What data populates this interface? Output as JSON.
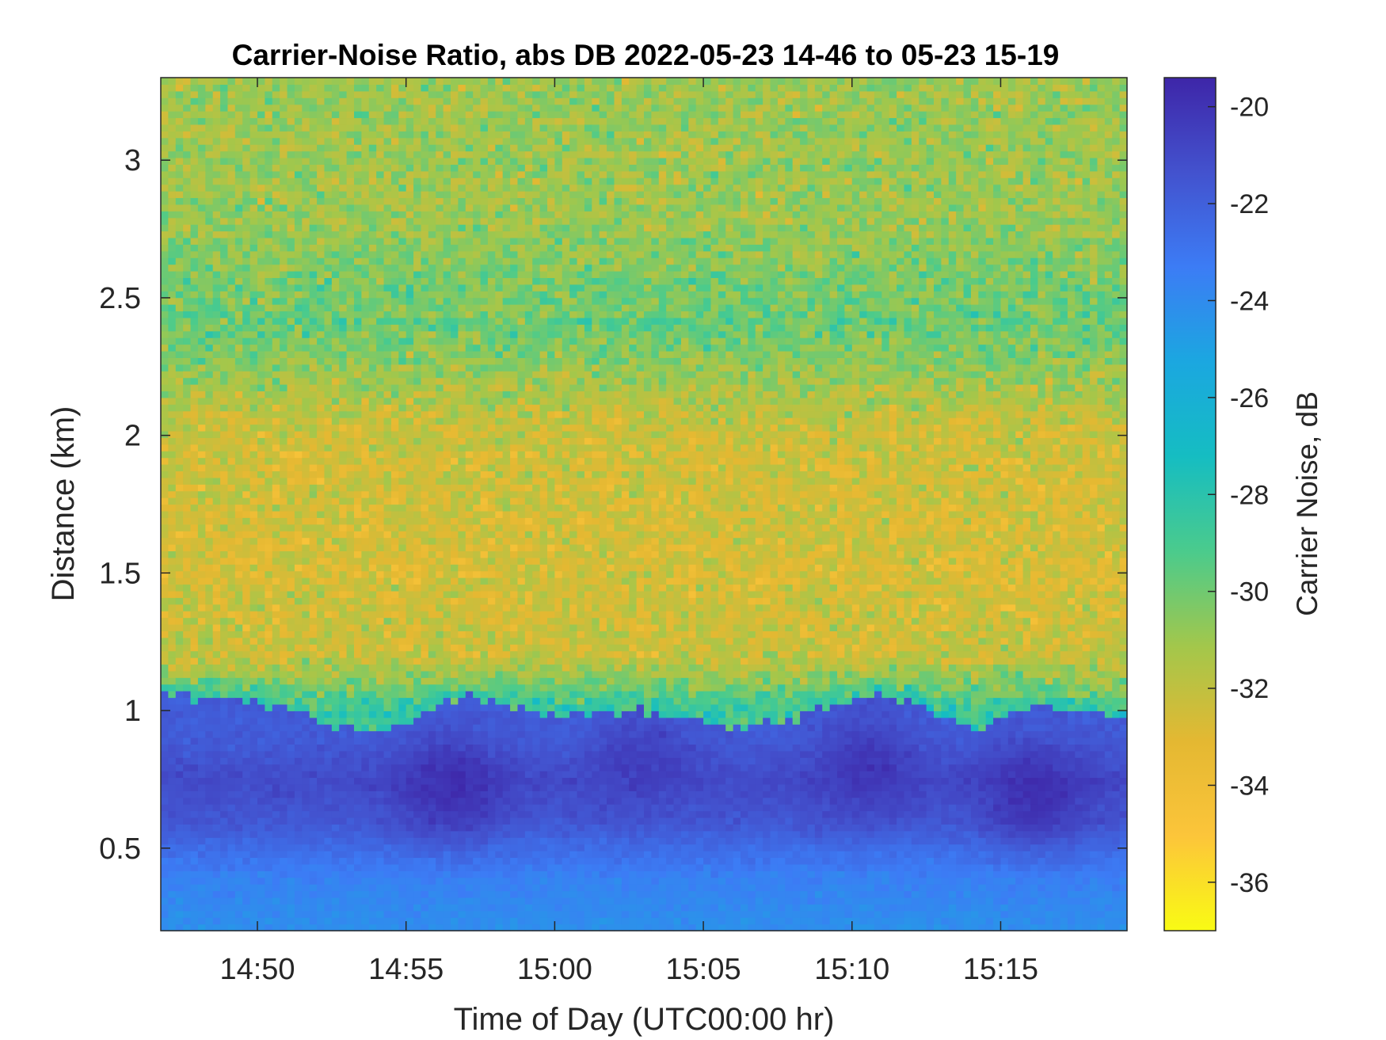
{
  "chart_data": {
    "type": "heatmap",
    "title": "Carrier-Noise Ratio, abs DB 2022-05-23 14-46 to 05-23 15-19",
    "xlabel": "Time of Day (UTC00:00 hr)",
    "ylabel": "Distance (km)",
    "colorbar_label": "Carrier Noise, dB",
    "colormap": "parula",
    "colormap_stops": [
      "#3e26a8",
      "#4352ce",
      "#3c7cf5",
      "#1ba7e0",
      "#15bdc2",
      "#4bcb8c",
      "#a3c74b",
      "#e4b832",
      "#fcc53a",
      "#f9fb14"
    ],
    "xlim_minutes": [
      16.75,
      49.25
    ],
    "x_ticks": [
      {
        "value": 20,
        "label": "14:50"
      },
      {
        "value": 25,
        "label": "14:55"
      },
      {
        "value": 30,
        "label": "15:00"
      },
      {
        "value": 35,
        "label": "15:05"
      },
      {
        "value": 40,
        "label": "15:10"
      },
      {
        "value": 45,
        "label": "15:15"
      }
    ],
    "ylim": [
      0.2,
      3.3
    ],
    "y_ticks": [
      {
        "value": 0.5,
        "label": "0.5"
      },
      {
        "value": 1,
        "label": "1"
      },
      {
        "value": 1.5,
        "label": "1.5"
      },
      {
        "value": 2,
        "label": "2"
      },
      {
        "value": 2.5,
        "label": "2.5"
      },
      {
        "value": 3,
        "label": "3"
      }
    ],
    "clim": [
      -37,
      -19.4
    ],
    "c_ticks": [
      {
        "value": -20,
        "label": "-20"
      },
      {
        "value": -22,
        "label": "-22"
      },
      {
        "value": -24,
        "label": "-24"
      },
      {
        "value": -26,
        "label": "-26"
      },
      {
        "value": -28,
        "label": "-28"
      },
      {
        "value": -30,
        "label": "-30"
      },
      {
        "value": -32,
        "label": "-32"
      },
      {
        "value": -34,
        "label": "-34"
      },
      {
        "value": -36,
        "label": "-36"
      }
    ],
    "grid": false,
    "time_bins": 130,
    "distance_bins": 128,
    "profile": [
      {
        "distance_km": 0.2,
        "value": -24.2
      },
      {
        "distance_km": 0.4,
        "value": -23.5
      },
      {
        "distance_km": 0.6,
        "value": -21.6
      },
      {
        "distance_km": 0.75,
        "value": -21.0
      },
      {
        "distance_km": 0.9,
        "value": -21.8
      },
      {
        "distance_km": 1.0,
        "value": -28.5
      },
      {
        "distance_km": 1.2,
        "value": -32.2
      },
      {
        "distance_km": 1.5,
        "value": -32.6
      },
      {
        "distance_km": 2.0,
        "value": -32.4
      },
      {
        "distance_km": 2.4,
        "value": -29.8
      },
      {
        "distance_km": 2.8,
        "value": -31.0
      },
      {
        "distance_km": 3.3,
        "value": -31.0
      }
    ],
    "low_layer_top_km": [
      {
        "time": 16.75,
        "distance_km": 1.06
      },
      {
        "time": 20,
        "distance_km": 1.03
      },
      {
        "time": 22,
        "distance_km": 0.96
      },
      {
        "time": 24,
        "distance_km": 0.93
      },
      {
        "time": 27,
        "distance_km": 1.05
      },
      {
        "time": 30,
        "distance_km": 0.99
      },
      {
        "time": 33,
        "distance_km": 1.0
      },
      {
        "time": 36,
        "distance_km": 0.95
      },
      {
        "time": 38,
        "distance_km": 0.97
      },
      {
        "time": 41,
        "distance_km": 1.08
      },
      {
        "time": 44,
        "distance_km": 0.92
      },
      {
        "time": 46,
        "distance_km": 1.02
      },
      {
        "time": 49.25,
        "distance_km": 0.99
      }
    ],
    "dark_cores": [
      {
        "time": 26.5,
        "distance_km": 0.72,
        "value": -19.6
      },
      {
        "time": 33,
        "distance_km": 0.82,
        "value": -20.4
      },
      {
        "time": 40.5,
        "distance_km": 0.8,
        "value": -20.0
      },
      {
        "time": 46.2,
        "distance_km": 0.7,
        "value": -19.6
      }
    ]
  }
}
